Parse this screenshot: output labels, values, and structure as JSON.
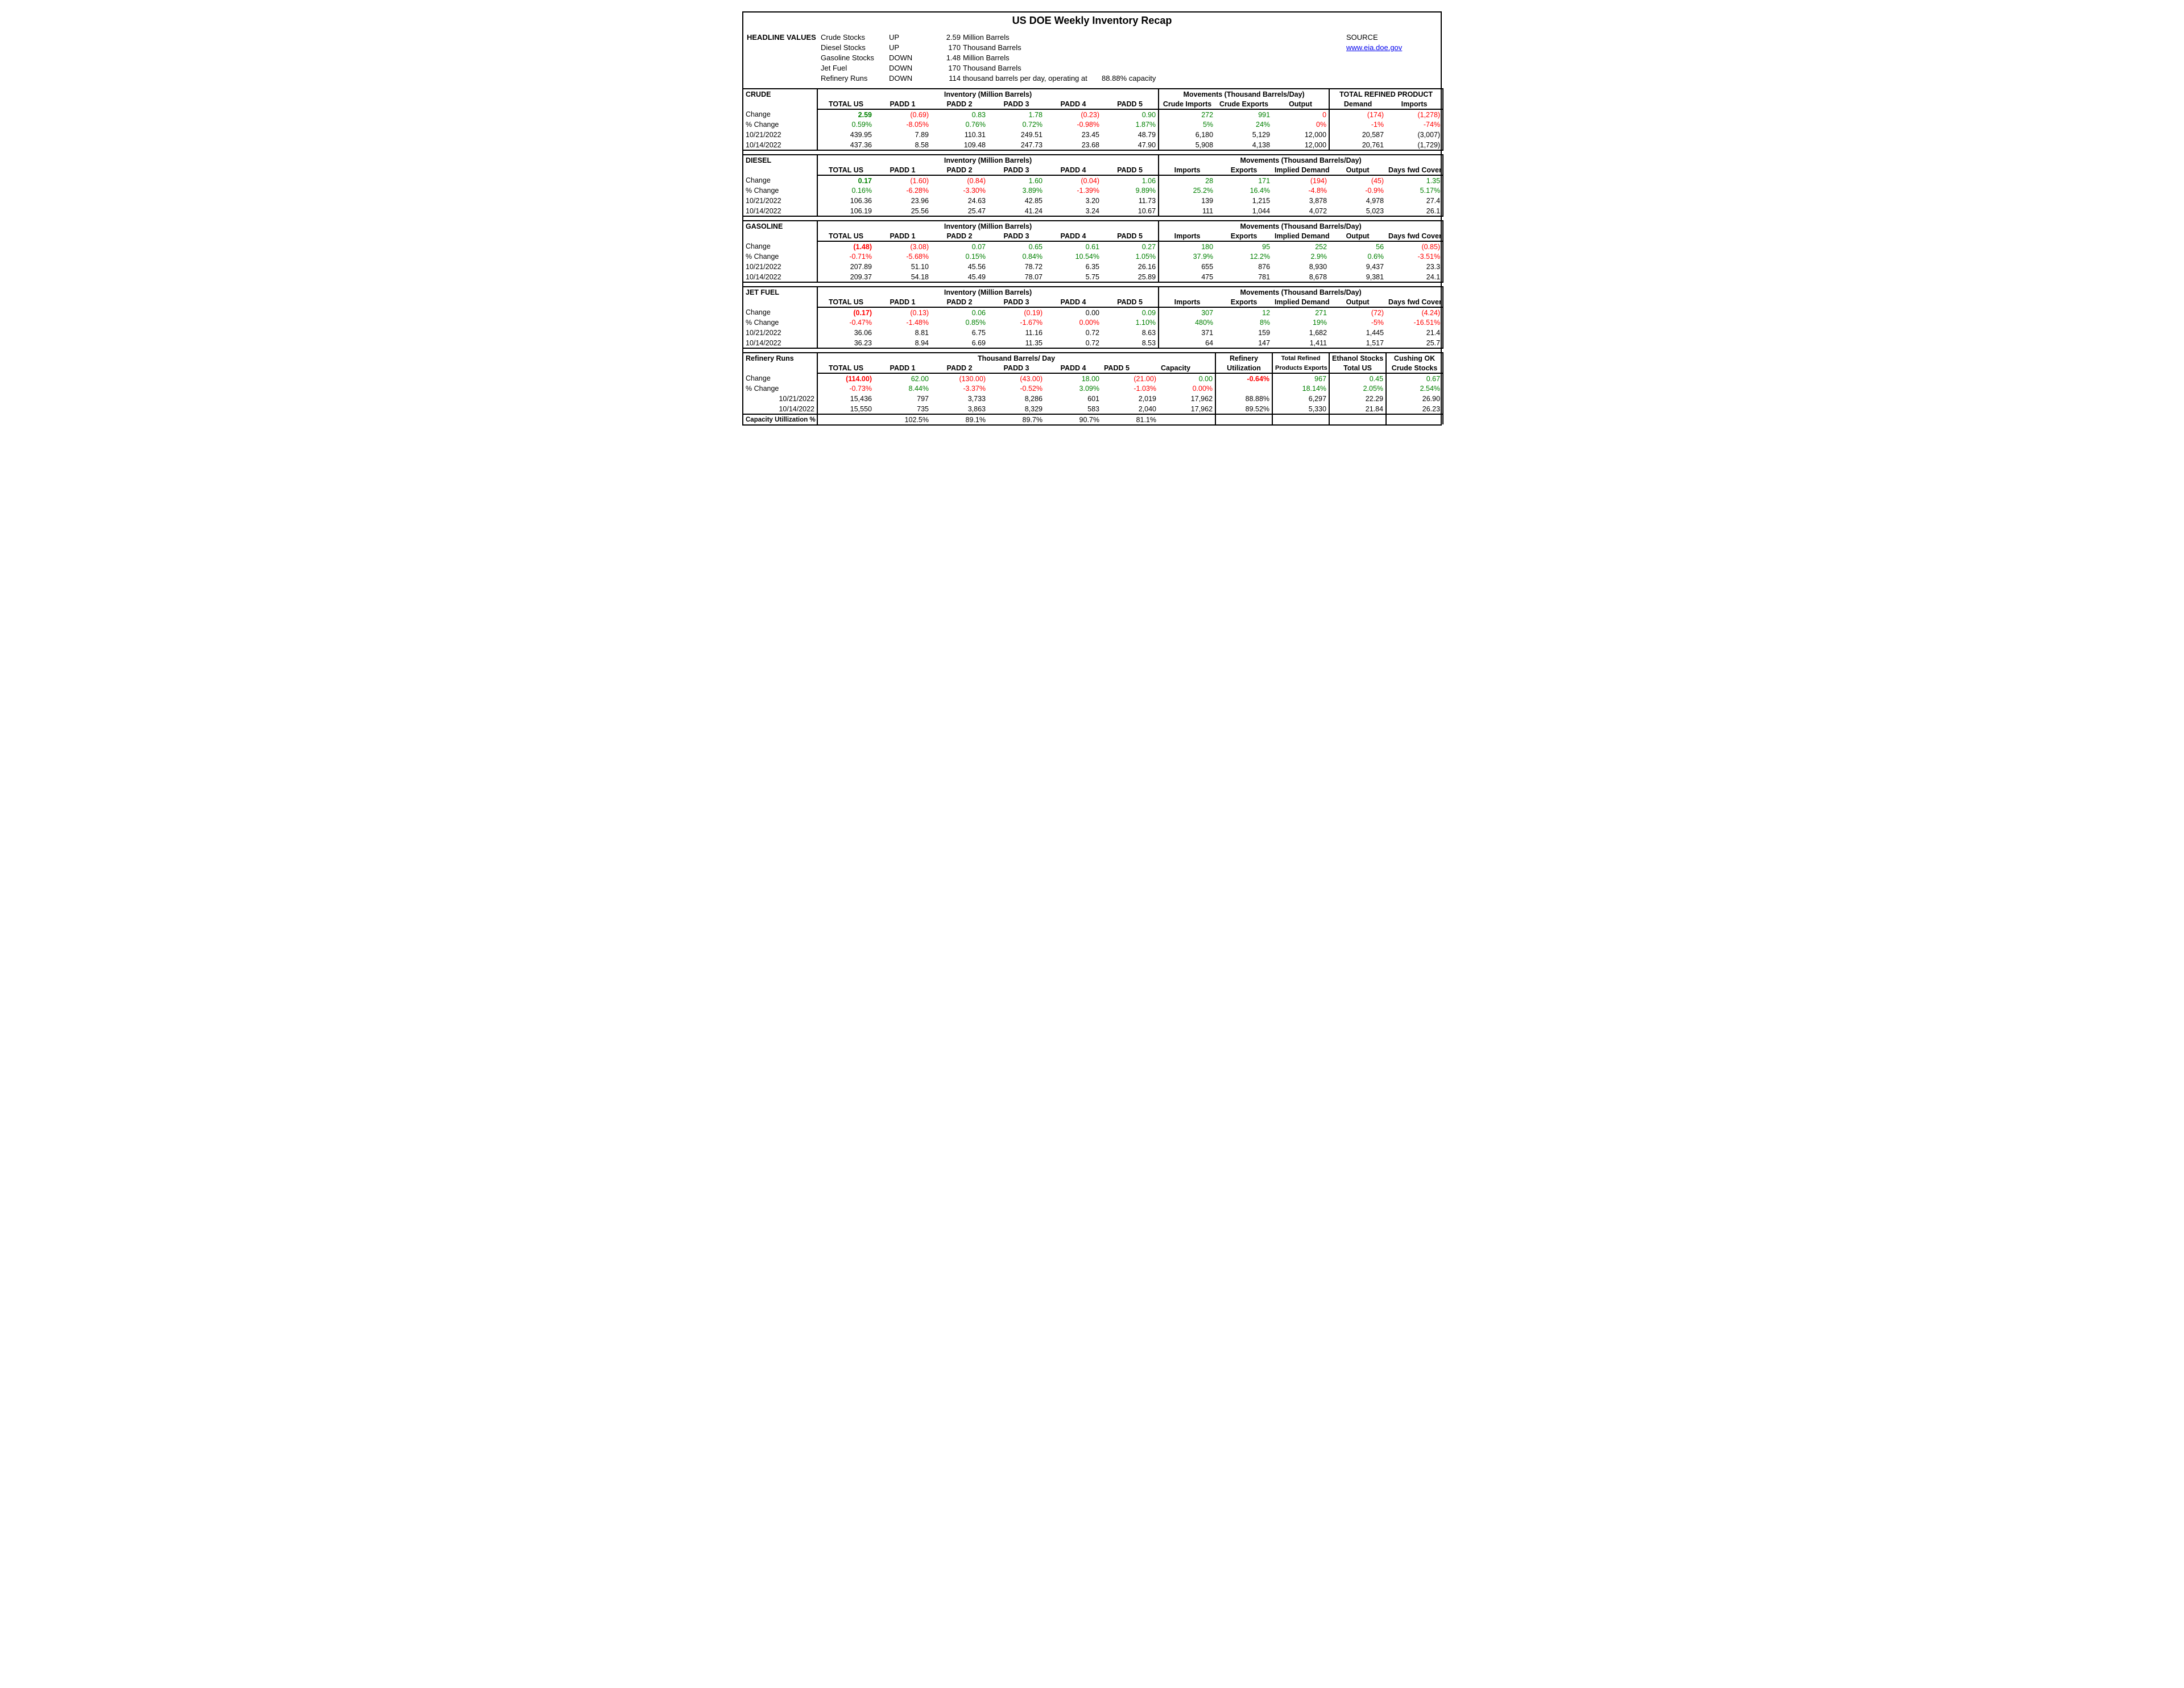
{
  "title": "US DOE Weekly Inventory Recap",
  "source_label": "SOURCE",
  "source_link": "www.eia.doe.gov",
  "headline_label": "HEADLINE VALUES",
  "headline": [
    {
      "item": "Crude Stocks",
      "dir": "UP",
      "val": "2.59",
      "unit": "Million Barrels"
    },
    {
      "item": "Diesel Stocks",
      "dir": "UP",
      "val": "170",
      "unit": "Thousand Barrels"
    },
    {
      "item": "Gasoline Stocks",
      "dir": "DOWN",
      "val": "1.48",
      "unit": "Million Barrels"
    },
    {
      "item": "Jet Fuel",
      "dir": "DOWN",
      "val": "170",
      "unit": "Thousand Barrels"
    },
    {
      "item": "Refinery Runs",
      "dir": "DOWN",
      "val": "114",
      "unit": "thousand barrels per day, operating at",
      "extra": "88.88% capacity"
    }
  ],
  "date1": "10/21/2022",
  "date2": "10/14/2022",
  "row_labels": {
    "change": "Change",
    "pct": "% Change",
    "caputil": "Capacity Utillization %"
  },
  "crude": {
    "name": "CRUDE",
    "inv_hdr": "Inventory (Million Barrels)",
    "mov_hdr": "Movements (Thousand Barrels/Day)",
    "trp_hdr": "TOTAL REFINED PRODUCT",
    "cols": [
      "TOTAL US",
      "PADD 1",
      "PADD 2",
      "PADD 3",
      "PADD 4",
      "PADD 5",
      "Crude Imports",
      "Crude Exports",
      "Output",
      "Demand",
      "Imports"
    ],
    "change": [
      {
        "v": "2.59",
        "c": "green",
        "big": true
      },
      {
        "v": "(0.69)",
        "c": "red"
      },
      {
        "v": "0.83",
        "c": "green"
      },
      {
        "v": "1.78",
        "c": "green"
      },
      {
        "v": "(0.23)",
        "c": "red"
      },
      {
        "v": "0.90",
        "c": "green"
      },
      {
        "v": "272",
        "c": "green"
      },
      {
        "v": "991",
        "c": "green"
      },
      {
        "v": "0",
        "c": "red"
      },
      {
        "v": "(174)",
        "c": "red"
      },
      {
        "v": "(1,278)",
        "c": "red"
      }
    ],
    "pct": [
      {
        "v": "0.59%",
        "c": "green"
      },
      {
        "v": "-8.05%",
        "c": "red"
      },
      {
        "v": "0.76%",
        "c": "green"
      },
      {
        "v": "0.72%",
        "c": "green"
      },
      {
        "v": "-0.98%",
        "c": "red"
      },
      {
        "v": "1.87%",
        "c": "green"
      },
      {
        "v": "5%",
        "c": "green"
      },
      {
        "v": "24%",
        "c": "green"
      },
      {
        "v": "0%",
        "c": "red"
      },
      {
        "v": "-1%",
        "c": "red"
      },
      {
        "v": "-74%",
        "c": "red"
      }
    ],
    "d1": [
      "439.95",
      "7.89",
      "110.31",
      "249.51",
      "23.45",
      "48.79",
      "6,180",
      "5,129",
      "12,000",
      "20,587",
      "(3,007)"
    ],
    "d2": [
      "437.36",
      "8.58",
      "109.48",
      "247.73",
      "23.68",
      "47.90",
      "5,908",
      "4,138",
      "12,000",
      "20,761",
      "(1,729)"
    ]
  },
  "diesel": {
    "name": "DIESEL",
    "inv_hdr": "Inventory (Million Barrels)",
    "mov_hdr": "Movements (Thousand Barrels/Day)",
    "cols": [
      "TOTAL US",
      "PADD 1",
      "PADD 2",
      "PADD 3",
      "PADD 4",
      "PADD 5",
      "Imports",
      "Exports",
      "Implied Demand",
      "Output",
      "Days fwd Cover"
    ],
    "change": [
      {
        "v": "0.17",
        "c": "green",
        "big": true
      },
      {
        "v": "(1.60)",
        "c": "red"
      },
      {
        "v": "(0.84)",
        "c": "red"
      },
      {
        "v": "1.60",
        "c": "green"
      },
      {
        "v": "(0.04)",
        "c": "red"
      },
      {
        "v": "1.06",
        "c": "green"
      },
      {
        "v": "28",
        "c": "green"
      },
      {
        "v": "171",
        "c": "green"
      },
      {
        "v": "(194)",
        "c": "red"
      },
      {
        "v": "(45)",
        "c": "red"
      },
      {
        "v": "1.35",
        "c": "green"
      }
    ],
    "pct": [
      {
        "v": "0.16%",
        "c": "green"
      },
      {
        "v": "-6.28%",
        "c": "red"
      },
      {
        "v": "-3.30%",
        "c": "red"
      },
      {
        "v": "3.89%",
        "c": "green"
      },
      {
        "v": "-1.39%",
        "c": "red"
      },
      {
        "v": "9.89%",
        "c": "green"
      },
      {
        "v": "25.2%",
        "c": "green"
      },
      {
        "v": "16.4%",
        "c": "green"
      },
      {
        "v": "-4.8%",
        "c": "red"
      },
      {
        "v": "-0.9%",
        "c": "red"
      },
      {
        "v": "5.17%",
        "c": "green"
      }
    ],
    "d1": [
      "106.36",
      "23.96",
      "24.63",
      "42.85",
      "3.20",
      "11.73",
      "139",
      "1,215",
      "3,878",
      "4,978",
      "27.4"
    ],
    "d2": [
      "106.19",
      "25.56",
      "25.47",
      "41.24",
      "3.24",
      "10.67",
      "111",
      "1,044",
      "4,072",
      "5,023",
      "26.1"
    ]
  },
  "gasoline": {
    "name": "GASOLINE",
    "inv_hdr": "Inventory (Million Barrels)",
    "mov_hdr": "Movements (Thousand Barrels/Day)",
    "cols": [
      "TOTAL US",
      "PADD 1",
      "PADD 2",
      "PADD 3",
      "PADD 4",
      "PADD 5",
      "Imports",
      "Exports",
      "Implied Demand",
      "Output",
      "Days fwd Cover"
    ],
    "change": [
      {
        "v": "(1.48)",
        "c": "red",
        "big": true
      },
      {
        "v": "(3.08)",
        "c": "red"
      },
      {
        "v": "0.07",
        "c": "green"
      },
      {
        "v": "0.65",
        "c": "green"
      },
      {
        "v": "0.61",
        "c": "green"
      },
      {
        "v": "0.27",
        "c": "green"
      },
      {
        "v": "180",
        "c": "green"
      },
      {
        "v": "95",
        "c": "green"
      },
      {
        "v": "252",
        "c": "green"
      },
      {
        "v": "56",
        "c": "green"
      },
      {
        "v": "(0.85)",
        "c": "red"
      }
    ],
    "pct": [
      {
        "v": "-0.71%",
        "c": "red"
      },
      {
        "v": "-5.68%",
        "c": "red"
      },
      {
        "v": "0.15%",
        "c": "green"
      },
      {
        "v": "0.84%",
        "c": "green"
      },
      {
        "v": "10.54%",
        "c": "green"
      },
      {
        "v": "1.05%",
        "c": "green"
      },
      {
        "v": "37.9%",
        "c": "green"
      },
      {
        "v": "12.2%",
        "c": "green"
      },
      {
        "v": "2.9%",
        "c": "green"
      },
      {
        "v": "0.6%",
        "c": "green"
      },
      {
        "v": "-3.51%",
        "c": "red"
      }
    ],
    "d1": [
      "207.89",
      "51.10",
      "45.56",
      "78.72",
      "6.35",
      "26.16",
      "655",
      "876",
      "8,930",
      "9,437",
      "23.3"
    ],
    "d2": [
      "209.37",
      "54.18",
      "45.49",
      "78.07",
      "5.75",
      "25.89",
      "475",
      "781",
      "8,678",
      "9,381",
      "24.1"
    ]
  },
  "jet": {
    "name": "JET FUEL",
    "inv_hdr": "Inventory (Million Barrels)",
    "mov_hdr": "Movements (Thousand Barrels/Day)",
    "cols": [
      "TOTAL US",
      "PADD 1",
      "PADD 2",
      "PADD 3",
      "PADD 4",
      "PADD 5",
      "Imports",
      "Exports",
      "Implied Demand",
      "Output",
      "Days fwd Cover"
    ],
    "change": [
      {
        "v": "(0.17)",
        "c": "red",
        "big": true
      },
      {
        "v": "(0.13)",
        "c": "red"
      },
      {
        "v": "0.06",
        "c": "green"
      },
      {
        "v": "(0.19)",
        "c": "red"
      },
      {
        "v": "0.00",
        "c": ""
      },
      {
        "v": "0.09",
        "c": "green"
      },
      {
        "v": "307",
        "c": "green"
      },
      {
        "v": "12",
        "c": "green"
      },
      {
        "v": "271",
        "c": "green"
      },
      {
        "v": "(72)",
        "c": "red"
      },
      {
        "v": "(4.24)",
        "c": "red"
      }
    ],
    "pct": [
      {
        "v": "-0.47%",
        "c": "red"
      },
      {
        "v": "-1.48%",
        "c": "red"
      },
      {
        "v": "0.85%",
        "c": "green"
      },
      {
        "v": "-1.67%",
        "c": "red"
      },
      {
        "v": "0.00%",
        "c": "red"
      },
      {
        "v": "1.10%",
        "c": "green"
      },
      {
        "v": "480%",
        "c": "green"
      },
      {
        "v": "8%",
        "c": "green"
      },
      {
        "v": "19%",
        "c": "green"
      },
      {
        "v": "-5%",
        "c": "red"
      },
      {
        "v": "-16.51%",
        "c": "red"
      }
    ],
    "d1": [
      "36.06",
      "8.81",
      "6.75",
      "11.16",
      "0.72",
      "8.63",
      "371",
      "159",
      "1,682",
      "1,445",
      "21.4"
    ],
    "d2": [
      "36.23",
      "8.94",
      "6.69",
      "11.35",
      "0.72",
      "8.53",
      "64",
      "147",
      "1,411",
      "1,517",
      "25.7"
    ]
  },
  "refinery": {
    "name": "Refinery Runs",
    "main_hdr": "Thousand Barrels/ Day",
    "refinery_lbl": "Refinery",
    "util_lbl": "Utilization",
    "trpe_lbl1": "Total Refined",
    "trpe_lbl2": "Products Exports",
    "eth_lbl1": "Ethanol Stocks",
    "eth_lbl2": "Total US",
    "cush_lbl1": "Cushing OK",
    "cush_lbl2": "Crude Stocks",
    "cols": [
      "TOTAL US",
      "PADD 1",
      "PADD 2",
      "PADD 3",
      "PADD 4",
      "PADD 5",
      "Capacity"
    ],
    "change": [
      {
        "v": "(114.00)",
        "c": "red",
        "big": true
      },
      {
        "v": "62.00",
        "c": "green"
      },
      {
        "v": "(130.00)",
        "c": "red"
      },
      {
        "v": "(43.00)",
        "c": "red"
      },
      {
        "v": "18.00",
        "c": "green"
      },
      {
        "v": "(21.00)",
        "c": "red"
      },
      {
        "v": "0.00",
        "c": "green"
      },
      {
        "v": "-0.64%",
        "c": "red",
        "big": true
      },
      {
        "v": "967",
        "c": "green"
      },
      {
        "v": "0.45",
        "c": "green"
      },
      {
        "v": "0.67",
        "c": "green"
      }
    ],
    "pct": [
      {
        "v": "-0.73%",
        "c": "red"
      },
      {
        "v": "8.44%",
        "c": "green"
      },
      {
        "v": "-3.37%",
        "c": "red"
      },
      {
        "v": "-0.52%",
        "c": "red"
      },
      {
        "v": "3.09%",
        "c": "green"
      },
      {
        "v": "-1.03%",
        "c": "red"
      },
      {
        "v": "0.00%",
        "c": "red"
      },
      {
        "v": ""
      },
      {
        "v": "18.14%",
        "c": "green"
      },
      {
        "v": "2.05%",
        "c": "green"
      },
      {
        "v": "2.54%",
        "c": "green"
      }
    ],
    "d1": [
      "15,436",
      "797",
      "3,733",
      "8,286",
      "601",
      "2,019",
      "17,962",
      "88.88%",
      "6,297",
      "22.29",
      "26.90"
    ],
    "d2": [
      "15,550",
      "735",
      "3,863",
      "8,329",
      "583",
      "2,040",
      "17,962",
      "89.52%",
      "5,330",
      "21.84",
      "26.23"
    ],
    "caputil": [
      "",
      "102.5%",
      "89.1%",
      "89.7%",
      "90.7%",
      "81.1%",
      "",
      "",
      "",
      "",
      ""
    ]
  }
}
